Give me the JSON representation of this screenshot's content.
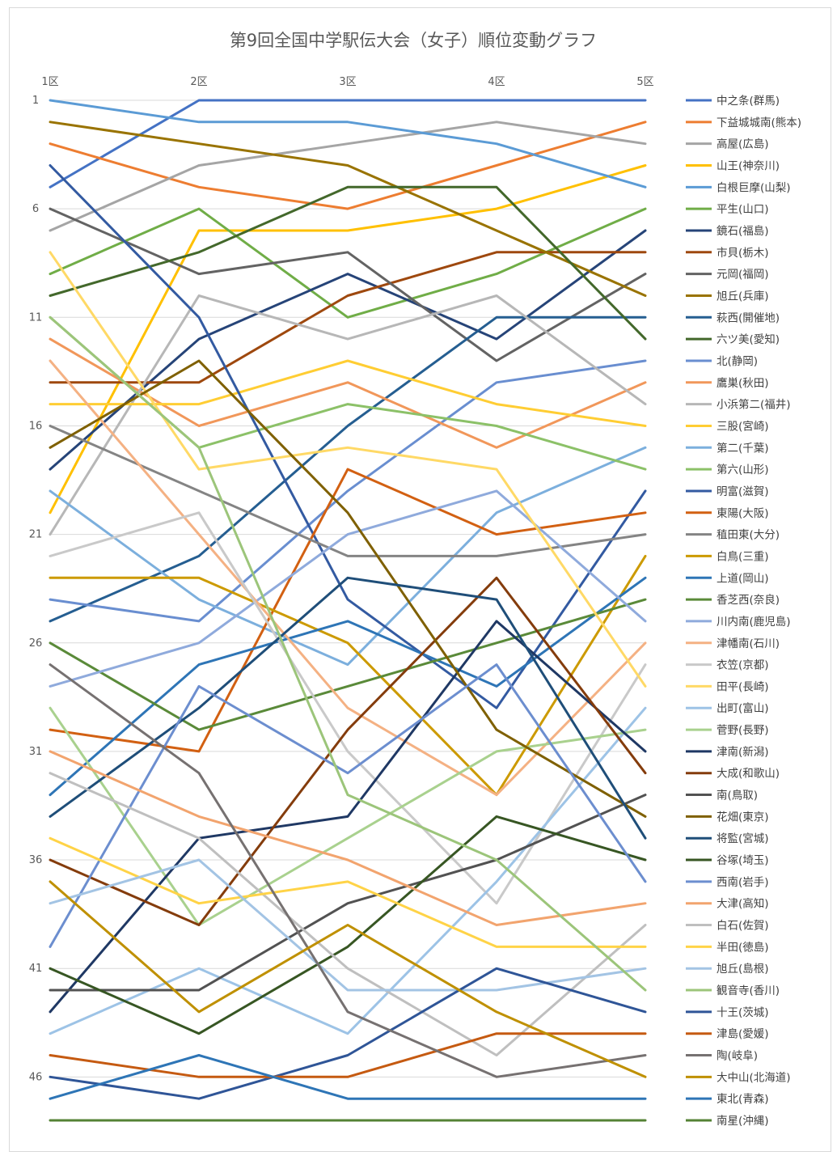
{
  "chart_data": {
    "type": "line",
    "title": "第9回全国中学駅伝大会（女子）順位変動グラフ",
    "xlabel": "",
    "ylabel": "",
    "categories": [
      "1区",
      "2区",
      "3区",
      "4区",
      "5区"
    ],
    "ylim": [
      1,
      48
    ],
    "y_inverted": true,
    "y_ticks": [
      1,
      6,
      11,
      16,
      21,
      26,
      31,
      36,
      41,
      46
    ],
    "grid": true,
    "legend_position": "right",
    "series": [
      {
        "name": "中之条(群馬)",
        "color": "#4472c4",
        "values": [
          5,
          1,
          1,
          1,
          1
        ]
      },
      {
        "name": "下益城城南(熊本)",
        "color": "#ed7d31",
        "values": [
          3,
          5,
          6,
          4,
          2
        ]
      },
      {
        "name": "高屋(広島)",
        "color": "#a5a5a5",
        "values": [
          7,
          4,
          3,
          2,
          3
        ]
      },
      {
        "name": "山王(神奈川)",
        "color": "#ffc000",
        "values": [
          20,
          7,
          7,
          6,
          4
        ]
      },
      {
        "name": "白根巨摩(山梨)",
        "color": "#5b9bd5",
        "values": [
          1,
          2,
          2,
          3,
          5
        ]
      },
      {
        "name": "平生(山口)",
        "color": "#70ad47",
        "values": [
          9,
          6,
          11,
          9,
          6
        ]
      },
      {
        "name": "鏡石(福島)",
        "color": "#264478",
        "values": [
          18,
          12,
          9,
          12,
          7
        ]
      },
      {
        "name": "市貝(栃木)",
        "color": "#9e480e",
        "values": [
          14,
          14,
          10,
          8,
          8
        ]
      },
      {
        "name": "元岡(福岡)",
        "color": "#636363",
        "values": [
          6,
          9,
          8,
          13,
          9
        ]
      },
      {
        "name": "旭丘(兵庫)",
        "color": "#997300",
        "values": [
          2,
          3,
          4,
          7,
          10
        ]
      },
      {
        "name": "萩西(開催地)",
        "color": "#255e91",
        "values": [
          25,
          22,
          16,
          11,
          11
        ]
      },
      {
        "name": "六ツ美(愛知)",
        "color": "#43682b",
        "values": [
          10,
          8,
          5,
          5,
          12
        ]
      },
      {
        "name": "北(静岡)",
        "color": "#698ed0",
        "values": [
          24,
          25,
          19,
          14,
          13
        ]
      },
      {
        "name": "鷹巣(秋田)",
        "color": "#f1975a",
        "values": [
          12,
          16,
          14,
          17,
          14
        ]
      },
      {
        "name": "小浜第二(福井)",
        "color": "#b7b7b7",
        "values": [
          21,
          10,
          12,
          10,
          15
        ]
      },
      {
        "name": "三股(宮崎)",
        "color": "#ffcd33",
        "values": [
          15,
          15,
          13,
          15,
          16
        ]
      },
      {
        "name": "第二(千葉)",
        "color": "#7cafdd",
        "values": [
          19,
          24,
          27,
          20,
          17
        ]
      },
      {
        "name": "第六(山形)",
        "color": "#8cc168",
        "values": [
          11,
          17,
          15,
          16,
          18
        ]
      },
      {
        "name": "明富(滋賀)",
        "color": "#335aa1",
        "values": [
          4,
          11,
          24,
          29,
          19
        ]
      },
      {
        "name": "東陽(大阪)",
        "color": "#d26012",
        "values": [
          30,
          31,
          18,
          21,
          20
        ]
      },
      {
        "name": "稙田東(大分)",
        "color": "#848484",
        "values": [
          16,
          19,
          22,
          22,
          21
        ]
      },
      {
        "name": "白鳥(三重)",
        "color": "#cc9a00",
        "values": [
          23,
          23,
          26,
          33,
          22
        ]
      },
      {
        "name": "上道(岡山)",
        "color": "#2e75b6",
        "values": [
          33,
          27,
          25,
          28,
          23
        ]
      },
      {
        "name": "香芝西(奈良)",
        "color": "#5a8a39",
        "values": [
          26,
          30,
          28,
          26,
          24
        ]
      },
      {
        "name": "川内南(鹿児島)",
        "color": "#8faadc",
        "values": [
          28,
          26,
          21,
          19,
          25
        ]
      },
      {
        "name": "津幡南(石川)",
        "color": "#f4b183",
        "values": [
          13,
          21,
          29,
          33,
          26
        ]
      },
      {
        "name": "衣笠(京都)",
        "color": "#c9c9c9",
        "values": [
          22,
          20,
          31,
          38,
          27
        ]
      },
      {
        "name": "田平(長崎)",
        "color": "#ffd966",
        "values": [
          8,
          18,
          17,
          18,
          28
        ]
      },
      {
        "name": "出町(富山)",
        "color": "#9dc3e6",
        "values": [
          44,
          41,
          44,
          37,
          29
        ]
      },
      {
        "name": "菅野(長野)",
        "color": "#a9d18e",
        "values": [
          29,
          39,
          35,
          31,
          30
        ]
      },
      {
        "name": "津南(新潟)",
        "color": "#1f3864",
        "values": [
          43,
          35,
          34,
          25,
          31
        ]
      },
      {
        "name": "大成(和歌山)",
        "color": "#843c0c",
        "values": [
          36,
          39,
          30,
          23,
          32
        ]
      },
      {
        "name": "南(鳥取)",
        "color": "#525252",
        "values": [
          42,
          42,
          38,
          36,
          33
        ]
      },
      {
        "name": "花畑(東京)",
        "color": "#7f6000",
        "values": [
          17,
          13,
          20,
          30,
          34
        ]
      },
      {
        "name": "将監(宮城)",
        "color": "#1f4e79",
        "values": [
          34,
          29,
          23,
          24,
          35
        ]
      },
      {
        "name": "谷塚(埼玉)",
        "color": "#375623",
        "values": [
          41,
          44,
          40,
          34,
          36
        ]
      },
      {
        "name": "西南(岩手)",
        "color": "#6c8ecf",
        "values": [
          40,
          28,
          32,
          27,
          37
        ]
      },
      {
        "name": "大津(高知)",
        "color": "#f2a46e",
        "values": [
          31,
          34,
          36,
          39,
          38
        ]
      },
      {
        "name": "白石(佐賀)",
        "color": "#bfbfbf",
        "values": [
          32,
          35,
          41,
          45,
          39
        ]
      },
      {
        "name": "半田(徳島)",
        "color": "#ffd347",
        "values": [
          35,
          38,
          37,
          40,
          40
        ]
      },
      {
        "name": "旭丘(島根)",
        "color": "#a3c4e4",
        "values": [
          38,
          36,
          42,
          42,
          41
        ]
      },
      {
        "name": "観音寺(香川)",
        "color": "#9cc57a",
        "values": [
          11,
          17,
          33,
          36,
          42
        ]
      },
      {
        "name": "十王(茨城)",
        "color": "#2f5597",
        "values": [
          46,
          47,
          45,
          41,
          43
        ]
      },
      {
        "name": "津島(愛媛)",
        "color": "#c55a11",
        "values": [
          45,
          46,
          46,
          44,
          44
        ]
      },
      {
        "name": "陶(岐阜)",
        "color": "#767171",
        "values": [
          27,
          32,
          43,
          46,
          45
        ]
      },
      {
        "name": "大中山(北海道)",
        "color": "#bf9000",
        "values": [
          37,
          43,
          39,
          43,
          46
        ]
      },
      {
        "name": "東北(青森)",
        "color": "#2e75b6",
        "values": [
          47,
          45,
          47,
          47,
          47
        ]
      },
      {
        "name": "南星(沖縄)",
        "color": "#548235",
        "values": [
          48,
          48,
          48,
          48,
          48
        ]
      }
    ]
  }
}
